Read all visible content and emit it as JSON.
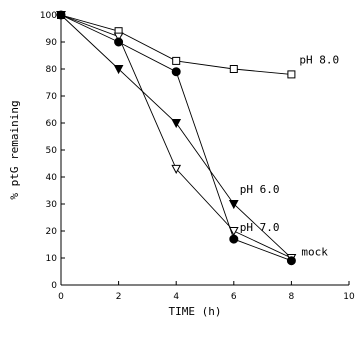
{
  "chart_data": {
    "type": "line",
    "title": "",
    "xlabel": "TIME (h)",
    "ylabel": "% ptG remaining",
    "xlim": [
      0,
      10
    ],
    "ylim": [
      0,
      100
    ],
    "x_ticks": [
      0,
      2,
      4,
      6,
      8,
      10
    ],
    "y_ticks": [
      0,
      10,
      20,
      30,
      40,
      50,
      60,
      70,
      80,
      90,
      100
    ],
    "x_tick_labels": [
      "0",
      "2",
      "4",
      "6",
      "8",
      "10"
    ],
    "y_tick_labels": [
      "0",
      "10",
      "20",
      "30",
      "40",
      "50",
      "60",
      "70",
      "80",
      "90",
      "100"
    ],
    "grid": false,
    "series": [
      {
        "name": "pH 8.0",
        "marker": "open-square",
        "x": [
          0,
          2,
          4,
          6,
          8
        ],
        "y": [
          100,
          94,
          83,
          80,
          78
        ]
      },
      {
        "name": "pH 6.0",
        "marker": "filled-triangle-down",
        "x": [
          0,
          2,
          4,
          6,
          8
        ],
        "y": [
          100,
          80,
          60,
          30,
          10
        ]
      },
      {
        "name": "pH 7.0",
        "marker": "open-triangle-down",
        "x": [
          0,
          2,
          4,
          6,
          8
        ],
        "y": [
          100,
          92,
          43,
          20,
          10
        ]
      },
      {
        "name": "mock",
        "marker": "filled-circle",
        "x": [
          0,
          2,
          4,
          6,
          8
        ],
        "y": [
          100,
          90,
          79,
          17,
          9
        ]
      }
    ]
  }
}
